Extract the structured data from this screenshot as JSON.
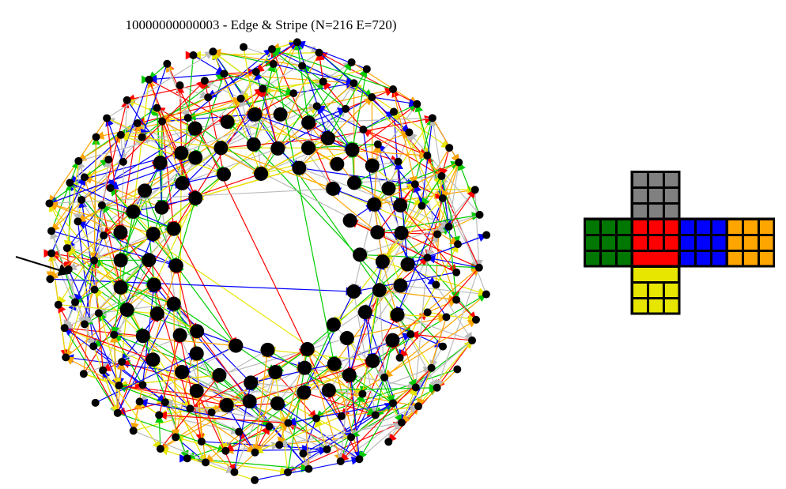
{
  "title": "10000000000003 - Edge & Stripe (N=216 E=720)",
  "graph": {
    "node_count": 216,
    "edge_count": 720,
    "node_color": "#000000",
    "edge_palette": [
      "#0000ff",
      "#00cc00",
      "#ff0000",
      "#ffa500",
      "#e6e600",
      "#bbbbbb"
    ],
    "marker": "arrow pointing at start node"
  },
  "cube_net": {
    "faces": [
      {
        "name": "top",
        "rows": [
          [
            "gray",
            "gray",
            "gray"
          ],
          [
            "gray",
            "gray",
            "gray"
          ],
          [
            "gray",
            "gray",
            "gray"
          ]
        ]
      },
      {
        "name": "left",
        "rows": [
          [
            "green",
            "green",
            "green"
          ],
          [
            "green",
            "green",
            "green"
          ],
          [
            "green",
            "green",
            "green"
          ]
        ]
      },
      {
        "name": "front",
        "rows": [
          [
            "red",
            "red",
            "red"
          ],
          [
            "red",
            "red",
            "red"
          ],
          [
            "red",
            "red",
            "red"
          ]
        ],
        "merged_bottom_row": true
      },
      {
        "name": "right",
        "rows": [
          [
            "blue",
            "blue",
            "blue"
          ],
          [
            "blue",
            "blue",
            "blue"
          ],
          [
            "blue",
            "blue",
            "blue"
          ]
        ]
      },
      {
        "name": "back",
        "rows": [
          [
            "orange",
            "orange",
            "orange"
          ],
          [
            "orange",
            "orange",
            "orange"
          ],
          [
            "orange",
            "orange",
            "orange"
          ]
        ]
      },
      {
        "name": "bottom",
        "rows": [
          [
            "yellow",
            "yellow",
            "yellow"
          ],
          [
            "yellow",
            "yellow",
            "yellow"
          ],
          [
            "yellow",
            "yellow",
            "yellow"
          ]
        ],
        "merged_top_row": true
      }
    ],
    "colors": {
      "gray": "#808080",
      "green": "#007700",
      "red": "#ff0000",
      "blue": "#0000ff",
      "orange": "#ffa500",
      "yellow": "#e6e600"
    }
  }
}
